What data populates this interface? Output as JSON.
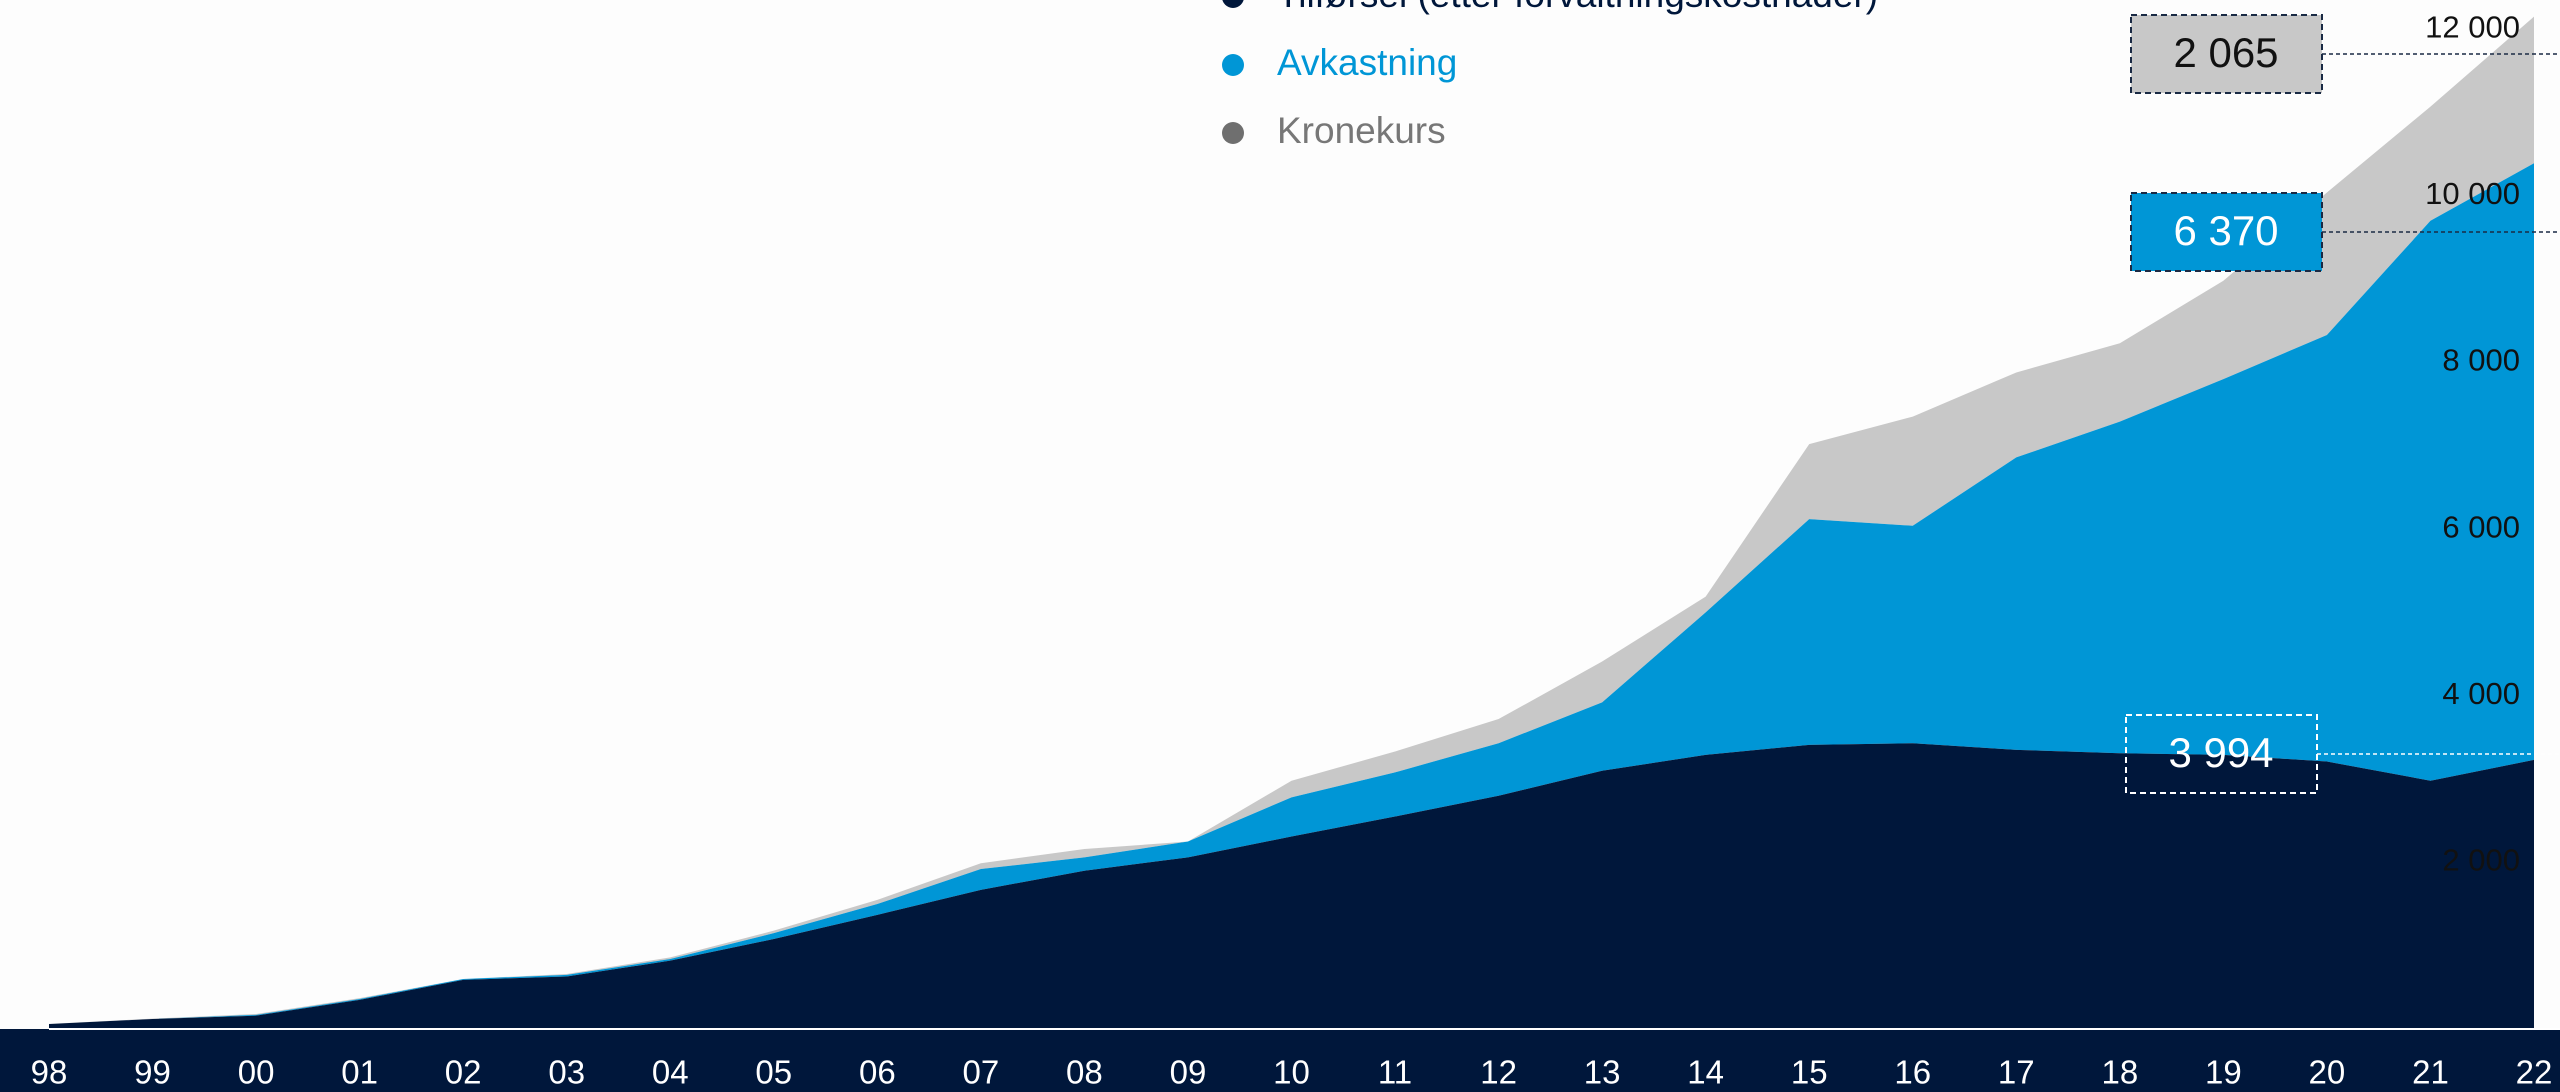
{
  "chart_data": {
    "type": "stacked_area",
    "categories": [
      "98",
      "99",
      "00",
      "01",
      "02",
      "03",
      "04",
      "05",
      "06",
      "07",
      "08",
      "09",
      "10",
      "11",
      "12",
      "13",
      "14",
      "15",
      "16",
      "17",
      "18",
      "19",
      "20",
      "21",
      "22"
    ],
    "series": [
      {
        "name": "Tilførsel (etter forvaltningskostnader)",
        "color": "#00173b",
        "values": [
          60,
          120,
          160,
          350,
          590,
          630,
          820,
          1080,
          1370,
          1670,
          1900,
          2060,
          2310,
          2550,
          2800,
          3100,
          3290,
          3410,
          3430,
          3350,
          3310,
          3290,
          3210,
          2980,
          3230
        ]
      },
      {
        "name": "Avkastning",
        "color": "#0096d6",
        "values": [
          0,
          0,
          10,
          10,
          10,
          20,
          20,
          70,
          130,
          250,
          160,
          190,
          470,
          530,
          630,
          820,
          1710,
          2710,
          2610,
          3510,
          3980,
          4510,
          5120,
          6720,
          7160
        ]
      },
      {
        "name": "Kronekurs",
        "color": "#c8c8c8",
        "values": [
          0,
          5,
          10,
          10,
          0,
          10,
          20,
          30,
          50,
          70,
          100,
          0,
          200,
          250,
          290,
          490,
          190,
          900,
          1310,
          1020,
          940,
          1180,
          1710,
          1370,
          1760
        ]
      }
    ],
    "ylim": [
      0,
      12350
    ],
    "yticks": [
      {
        "value": 2000,
        "label": "2 000"
      },
      {
        "value": 4000,
        "label": "4 000"
      },
      {
        "value": 6000,
        "label": "6 000"
      },
      {
        "value": 8000,
        "label": "8 000"
      },
      {
        "value": 10000,
        "label": "10 000"
      },
      {
        "value": 12000,
        "label": "12 000"
      }
    ],
    "annotations": [
      "2 065",
      "6 370",
      "3 994"
    ]
  }
}
